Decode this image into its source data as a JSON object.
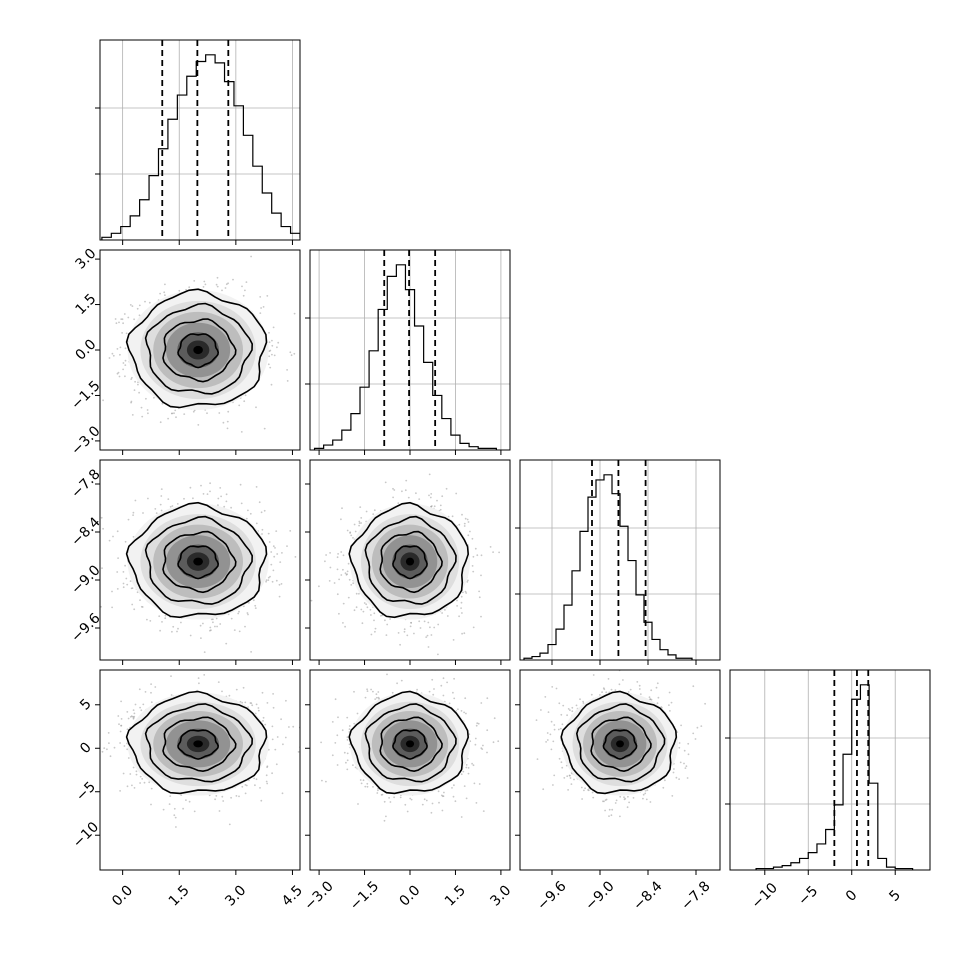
{
  "chart_data": {
    "type": "corner",
    "parameters": [
      {
        "range": [
          -0.6,
          4.7
        ],
        "ticks": [
          0.0,
          1.5,
          3.0,
          4.5
        ],
        "tick_labels": [
          "0.0",
          "1.5",
          "3.0",
          "4.5"
        ],
        "quantiles": [
          1.05,
          1.98,
          2.8
        ],
        "histogram": {
          "edges_start": -0.55,
          "bin_width": 0.25,
          "counts": [
            2,
            5,
            10,
            18,
            30,
            48,
            68,
            90,
            108,
            122,
            133,
            138,
            132,
            118,
            100,
            78,
            55,
            35,
            20,
            10,
            5,
            2
          ]
        }
      },
      {
        "range": [
          -3.3,
          3.3
        ],
        "ticks": [
          -3.0,
          -1.5,
          0.0,
          1.5,
          3.0
        ],
        "tick_labels": [
          "−3.0",
          "−1.5",
          "0.0",
          "1.5",
          "3.0"
        ],
        "quantiles": [
          -0.85,
          -0.03,
          0.83
        ],
        "histogram": {
          "edges_start": -3.15,
          "bin_width": 0.3,
          "counts": [
            1,
            3,
            6,
            12,
            22,
            38,
            60,
            85,
            105,
            112,
            97,
            75,
            53,
            33,
            19,
            9,
            4,
            2,
            1,
            1
          ]
        }
      },
      {
        "range": [
          -10.0,
          -7.5
        ],
        "ticks": [
          -9.6,
          -9.0,
          -8.4,
          -7.8
        ],
        "tick_labels": [
          "−9.6",
          "−9.0",
          "−8.4",
          "−7.8"
        ],
        "quantiles": [
          -9.1,
          -8.77,
          -8.43
        ],
        "histogram": {
          "edges_start": -9.95,
          "bin_width": 0.1,
          "counts": [
            1,
            2,
            4,
            9,
            18,
            32,
            52,
            75,
            95,
            105,
            108,
            97,
            78,
            58,
            38,
            22,
            12,
            6,
            3,
            1,
            1
          ]
        }
      },
      {
        "range": [
          -14,
          9
        ],
        "ticks": [
          -10,
          -5,
          0,
          5
        ],
        "tick_labels": [
          "−10",
          "−5",
          "0",
          "5"
        ],
        "quantiles": [
          -2.0,
          0.6,
          1.9
        ],
        "histogram": {
          "edges_start": -11.0,
          "bin_width": 1.0,
          "counts": [
            1,
            1,
            2,
            3,
            5,
            8,
            12,
            18,
            28,
            45,
            80,
            118,
            128,
            60,
            8,
            2,
            1,
            1
          ]
        }
      }
    ],
    "row_axis": [
      null,
      {
        "ticks": [
          -3.0,
          -1.5,
          0.0,
          1.5,
          3.0
        ],
        "tick_labels": [
          "−3.0",
          "−1.5",
          "0.0",
          "1.5",
          "3.0"
        ]
      },
      {
        "ticks": [
          -9.6,
          -9.0,
          -8.4,
          -7.8
        ],
        "tick_labels": [
          "−9.6",
          "−9.0",
          "−8.4",
          "−7.8"
        ]
      },
      {
        "ticks": [
          -10,
          -5,
          0,
          5
        ],
        "tick_labels": [
          "−10",
          "−5",
          "0",
          "5"
        ]
      }
    ],
    "pair_stats": {
      "1_0": {
        "center": [
          2.0,
          0.0
        ],
        "sd": [
          0.85,
          0.9
        ],
        "tilt": 0.0
      },
      "2_0": {
        "center": [
          2.0,
          -8.77
        ],
        "sd": [
          0.85,
          0.33
        ],
        "tilt": 0.0
      },
      "2_1": {
        "center": [
          0.0,
          -8.77
        ],
        "sd": [
          0.9,
          0.33
        ],
        "tilt": 0.0
      },
      "3_0": {
        "center": [
          2.0,
          0.5
        ],
        "sd": [
          0.85,
          2.7
        ],
        "tilt": 0.0
      },
      "3_1": {
        "center": [
          0.0,
          0.5
        ],
        "sd": [
          0.9,
          2.7
        ],
        "tilt": 0.0
      },
      "3_2": {
        "center": [
          -8.75,
          0.5
        ],
        "sd": [
          0.33,
          2.7
        ],
        "tilt": 0.0
      }
    },
    "contour_levels_sigma": [
      0.6,
      1.1,
      1.6,
      2.1
    ],
    "grid": true,
    "colors": {
      "line": "#000000",
      "grid": "#b0b0b0",
      "points": "#9a9a9a"
    }
  }
}
